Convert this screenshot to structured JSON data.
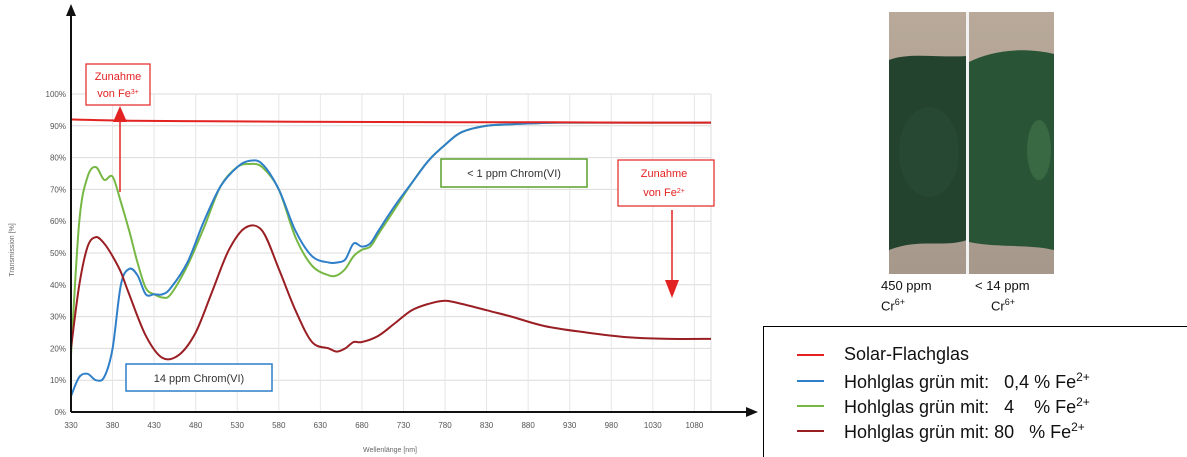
{
  "chart_data": {
    "type": "line",
    "title": "",
    "xlabel": "Wellenlänge [nm]",
    "ylabel": "Transmission [%]",
    "xlim": [
      330,
      1100
    ],
    "ylim": [
      0,
      100
    ],
    "x_ticks": [
      330,
      380,
      430,
      480,
      530,
      580,
      630,
      680,
      730,
      780,
      830,
      880,
      930,
      980,
      1030,
      1080
    ],
    "y_ticks": [
      "0%",
      "10%",
      "20%",
      "30%",
      "40%",
      "50%",
      "60%",
      "70%",
      "80%",
      "90%",
      "100%"
    ],
    "grid": true,
    "series": [
      {
        "name": "Solar-Flachglas",
        "color": "#e32222",
        "x": [
          330,
          400,
          500,
          600,
          700,
          800,
          900,
          1000,
          1100
        ],
        "y": [
          92,
          91.6,
          91.4,
          91.3,
          91.2,
          91.1,
          91.1,
          91.0,
          91.0
        ]
      },
      {
        "name": "Hohlglas grün mit: 0,4 % Fe2+",
        "color": "#2f7fc9",
        "x": [
          330,
          340,
          350,
          360,
          370,
          380,
          390,
          400,
          410,
          420,
          430,
          440,
          450,
          470,
          490,
          510,
          530,
          545,
          560,
          580,
          600,
          620,
          640,
          650,
          660,
          670,
          680,
          690,
          700,
          720,
          740,
          760,
          780,
          800,
          830,
          860,
          890,
          920,
          1000,
          1100
        ],
        "y": [
          5,
          11,
          12,
          10,
          11,
          20,
          40,
          45,
          43,
          37,
          37,
          37,
          39,
          47,
          60,
          71,
          77,
          79,
          78,
          70,
          57,
          49,
          47,
          47,
          48,
          53,
          52,
          53,
          57,
          65,
          72,
          79,
          84,
          88,
          90,
          90.5,
          90.8,
          91,
          91,
          91
        ]
      },
      {
        "name": "Hohlglas grün mit: 4 % Fe2+",
        "color": "#77b845",
        "x": [
          330,
          340,
          350,
          360,
          370,
          380,
          390,
          400,
          410,
          420,
          430,
          440,
          450,
          470,
          490,
          510,
          530,
          545,
          560,
          580,
          600,
          620,
          640,
          650,
          660,
          670,
          680,
          690,
          700,
          720,
          740,
          760,
          780,
          800,
          830,
          860,
          890,
          920,
          1000,
          1100
        ],
        "y": [
          18,
          60,
          74,
          77,
          73,
          74,
          66,
          57,
          47,
          39,
          37,
          36,
          37,
          46,
          58,
          71,
          77,
          78,
          77,
          70,
          55,
          46,
          43,
          43,
          45,
          49,
          51,
          52,
          56,
          64,
          72,
          79,
          84,
          88,
          90,
          90.5,
          90.8,
          91,
          91,
          91
        ]
      },
      {
        "name": "Hohlglas grün mit: 80 % Fe2+",
        "color": "#9a1f24",
        "x": [
          330,
          340,
          350,
          360,
          370,
          380,
          390,
          400,
          420,
          440,
          460,
          480,
          500,
          520,
          540,
          560,
          580,
          600,
          620,
          640,
          650,
          660,
          670,
          680,
          700,
          720,
          740,
          760,
          780,
          800,
          830,
          860,
          900,
          950,
          1000,
          1050,
          1100
        ],
        "y": [
          20,
          40,
          52,
          55,
          53,
          49,
          44,
          37,
          24,
          17,
          18,
          25,
          38,
          51,
          58,
          57,
          45,
          32,
          22,
          20,
          19,
          20,
          22,
          22,
          24,
          28,
          32,
          34,
          35,
          34,
          32,
          30,
          27,
          25,
          23.5,
          23,
          23
        ]
      }
    ],
    "annotations": [
      {
        "text": [
          "Zunahme",
          "von Fe3+"
        ],
        "direction": "up"
      },
      {
        "text": [
          "Zunahme",
          "von Fe2+"
        ],
        "direction": "down"
      },
      {
        "text": "< 1 ppm Chrom(VI)"
      },
      {
        "text": "14 ppm Chrom(VI)"
      }
    ]
  },
  "photo": {
    "left_label": "450 ppm",
    "right_label": "< 14 ppm",
    "species": "Cr",
    "species_charge": "6+"
  },
  "legend": {
    "items": [
      {
        "label": "Solar-Flachglas",
        "color": "#e32222"
      },
      {
        "label": "Hohlglas grün mit:   0,4 % Fe",
        "charge": "2+",
        "color": "#2f7fc9"
      },
      {
        "label": "Hohlglas grün mit:   4    % Fe",
        "charge": "2+",
        "color": "#77b845"
      },
      {
        "label": "Hohlglas grün mit: 80   % Fe",
        "charge": "2+",
        "color": "#9a1f24"
      }
    ]
  }
}
